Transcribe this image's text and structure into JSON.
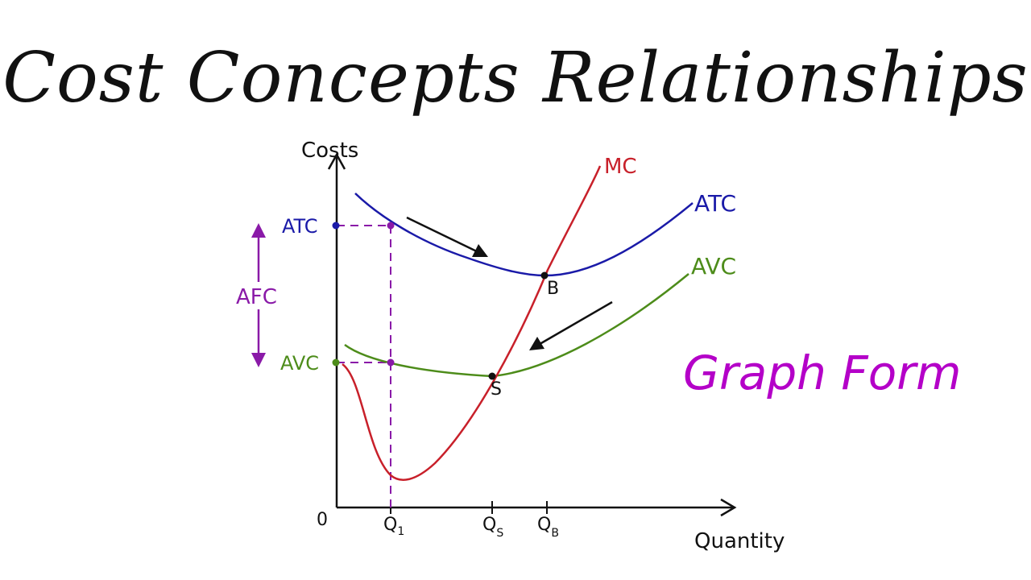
{
  "title": "Cost Concepts Relationships",
  "subtitle": "Graph Form",
  "colors": {
    "axis": "#111111",
    "atc": "#1a1aa8",
    "avc": "#4d8c1a",
    "mc": "#c8202a",
    "afc": "#8a1aa8",
    "subtitle": "#b400c8"
  },
  "axes": {
    "y_label": "Costs",
    "x_label": "Quantity",
    "origin": "0",
    "y_ticks": {
      "atc": "ATC",
      "avc": "AVC"
    },
    "x_ticks": {
      "q1": "Q",
      "q1_sub": "1",
      "qs": "Q",
      "qs_sub": "S",
      "qb": "Q",
      "qb_sub": "B"
    }
  },
  "curves": {
    "mc": "MC",
    "atc": "ATC",
    "avc": "AVC"
  },
  "points": {
    "b": "B",
    "s": "S"
  },
  "afc_label": "AFC"
}
